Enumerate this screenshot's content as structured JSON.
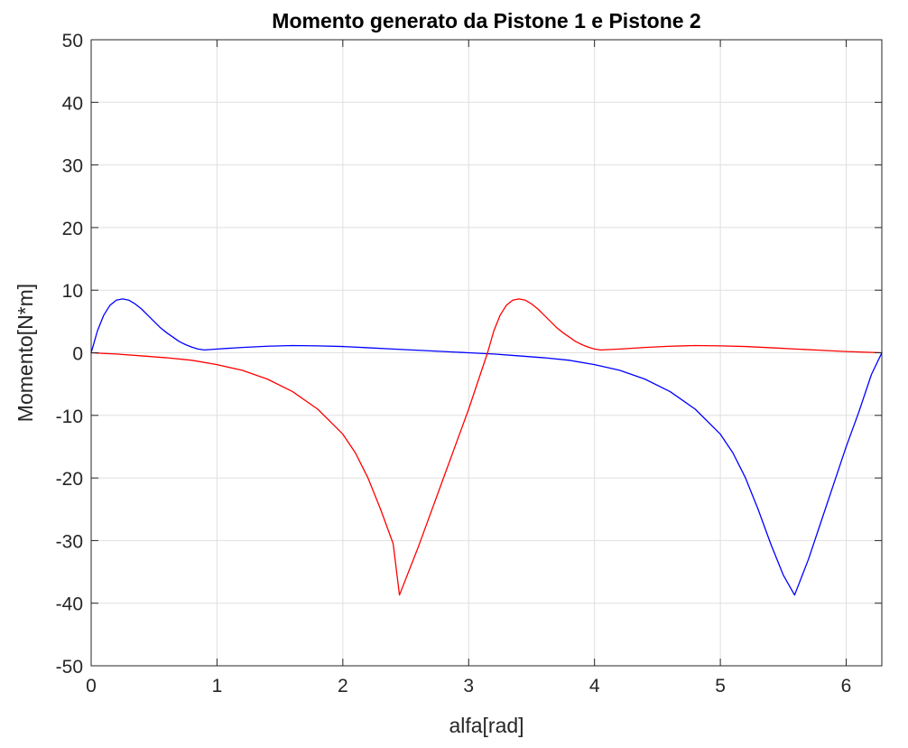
{
  "chart_data": {
    "type": "line",
    "title": "Momento generato da Pistone 1 e Pistone 2",
    "xlabel": "alfa[rad]",
    "ylabel": "Momento[N*m]",
    "xlim": [
      0,
      6.2832
    ],
    "ylim": [
      -50,
      50
    ],
    "xticks": [
      0,
      1,
      2,
      3,
      4,
      5,
      6
    ],
    "yticks": [
      -50,
      -40,
      -30,
      -20,
      -10,
      0,
      10,
      20,
      30,
      40,
      50
    ],
    "grid": true,
    "background": "#ffffff",
    "series": [
      {
        "color": "#0000ff",
        "x": [
          0,
          0.05,
          0.1,
          0.15,
          0.2,
          0.25,
          0.3,
          0.35,
          0.4,
          0.45,
          0.5,
          0.55,
          0.6,
          0.65,
          0.7,
          0.75,
          0.8,
          0.85,
          0.9,
          1.0,
          1.2,
          1.4,
          1.6,
          1.8,
          2.0,
          2.2,
          2.4,
          2.6,
          2.8,
          3.0,
          3.2,
          3.4,
          3.6,
          3.8,
          4.0,
          4.2,
          4.4,
          4.6,
          4.8,
          5.0,
          5.1,
          5.2,
          5.3,
          5.4,
          5.5,
          5.59,
          5.7,
          5.8,
          5.9,
          6.0,
          6.1,
          6.2,
          6.2832
        ],
        "y": [
          0,
          3.5,
          6.0,
          7.6,
          8.4,
          8.6,
          8.4,
          7.8,
          7.0,
          6.0,
          5.0,
          4.0,
          3.2,
          2.5,
          1.8,
          1.3,
          0.9,
          0.6,
          0.45,
          0.6,
          0.85,
          1.05,
          1.15,
          1.1,
          1.0,
          0.8,
          0.6,
          0.4,
          0.2,
          0,
          -0.2,
          -0.5,
          -0.8,
          -1.2,
          -1.9,
          -2.8,
          -4.2,
          -6.2,
          -9.0,
          -13.0,
          -16.0,
          -20.0,
          -25.0,
          -30.5,
          -35.5,
          -38.7,
          -33.0,
          -27.0,
          -21.0,
          -15.0,
          -9.5,
          -3.5,
          0
        ]
      },
      {
        "color": "#ff0000",
        "x": [
          0,
          0.2,
          0.4,
          0.6,
          0.8,
          1.0,
          1.2,
          1.4,
          1.6,
          1.8,
          2.0,
          2.1,
          2.2,
          2.3,
          2.4,
          2.45,
          2.6,
          2.8,
          3.0,
          3.15,
          3.2,
          3.25,
          3.3,
          3.35,
          3.4,
          3.45,
          3.5,
          3.55,
          3.6,
          3.65,
          3.7,
          3.75,
          3.8,
          3.85,
          3.9,
          3.95,
          4.0,
          4.05,
          4.2,
          4.4,
          4.6,
          4.8,
          5.0,
          5.2,
          5.4,
          5.6,
          5.8,
          6.0,
          6.2832
        ],
        "y": [
          0,
          -0.2,
          -0.5,
          -0.8,
          -1.2,
          -1.9,
          -2.8,
          -4.2,
          -6.2,
          -9.0,
          -13.0,
          -16.0,
          -20.0,
          -25.0,
          -30.5,
          -38.7,
          -31.0,
          -20.0,
          -9.0,
          0,
          3.5,
          6.0,
          7.6,
          8.4,
          8.6,
          8.4,
          7.8,
          7.0,
          6.0,
          5.0,
          4.0,
          3.2,
          2.5,
          1.8,
          1.3,
          0.9,
          0.6,
          0.45,
          0.6,
          0.85,
          1.05,
          1.15,
          1.1,
          1.0,
          0.8,
          0.6,
          0.4,
          0.2,
          0
        ]
      }
    ]
  }
}
